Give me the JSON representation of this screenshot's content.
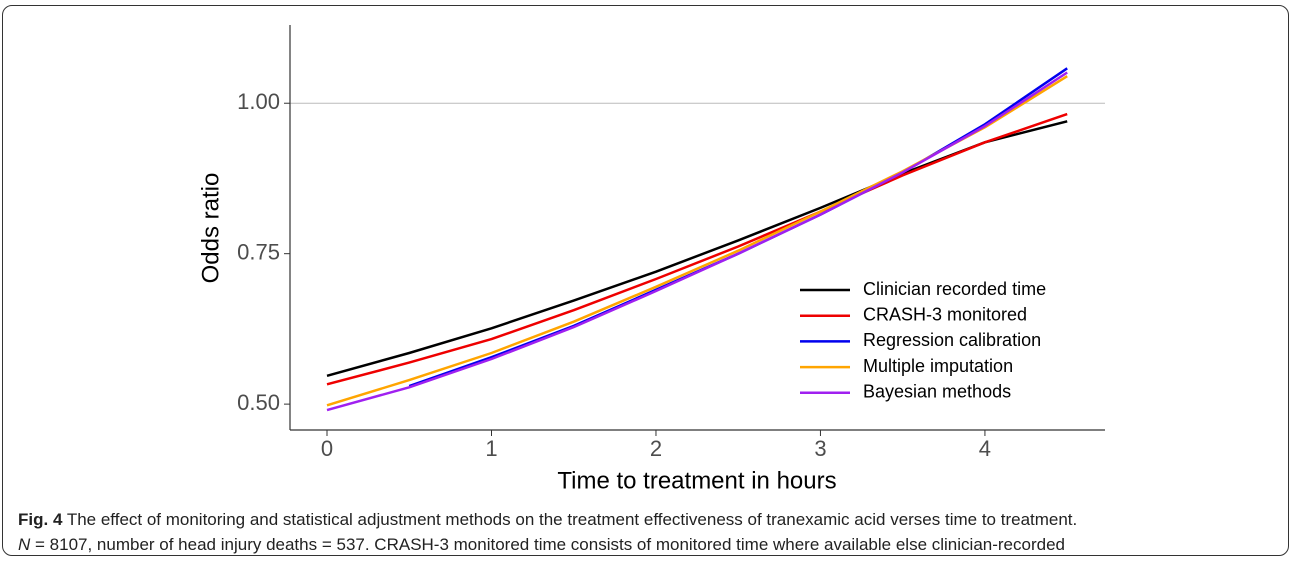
{
  "chart_data": {
    "type": "line",
    "y_label": "Odds ratio",
    "x_label": "Time to treatment in hours",
    "x": [
      0,
      0.5,
      1,
      1.5,
      2,
      2.5,
      3,
      3.5,
      4,
      4.5
    ],
    "series": [
      {
        "name": "Clinician recorded time",
        "color": "#000000",
        "values": [
          0.547,
          0.585,
          0.626,
          0.672,
          0.72,
          0.772,
          0.826,
          0.883,
          0.935,
          0.97
        ]
      },
      {
        "name": "CRASH-3 monitored",
        "color": "#ee0000",
        "values": [
          0.533,
          0.569,
          0.608,
          0.656,
          0.708,
          0.762,
          0.82,
          0.88,
          0.935,
          0.982
        ]
      },
      {
        "name": "Regression calibration",
        "color": "#0000ee",
        "values": [
          null,
          0.53,
          0.578,
          0.63,
          0.69,
          0.75,
          0.815,
          0.885,
          0.965,
          1.058
        ]
      },
      {
        "name": "Multiple imputation",
        "color": "#ffa500",
        "values": [
          0.498,
          0.54,
          0.585,
          0.637,
          0.695,
          0.755,
          0.82,
          0.887,
          0.96,
          1.045
        ]
      },
      {
        "name": "Bayesian methods",
        "color": "#a020f0",
        "values": [
          0.49,
          0.528,
          0.575,
          0.628,
          0.688,
          0.75,
          0.815,
          0.885,
          0.962,
          1.051
        ]
      }
    ],
    "xlim": [
      -0.225,
      4.73
    ],
    "xticks": [
      0,
      1,
      2,
      3,
      4
    ],
    "ylim": [
      0.457,
      1.13
    ],
    "yticks": [
      {
        "value": 0.5,
        "label": "0.50"
      },
      {
        "value": 0.75,
        "label": "0.75"
      },
      {
        "value": 1,
        "label": "1.00"
      }
    ],
    "reference_line": 1,
    "legend": "bottom-right"
  },
  "caption": {
    "label": "Fig. 4",
    "text1": "The effect of monitoring and statistical adjustment methods on the treatment effectiveness of tranexamic acid verses time to treatment.",
    "n": "N",
    "text2": " = 8107, number of head injury deaths = 537. CRASH-3 monitored time consists of monitored time where available else clinician-recorded"
  }
}
